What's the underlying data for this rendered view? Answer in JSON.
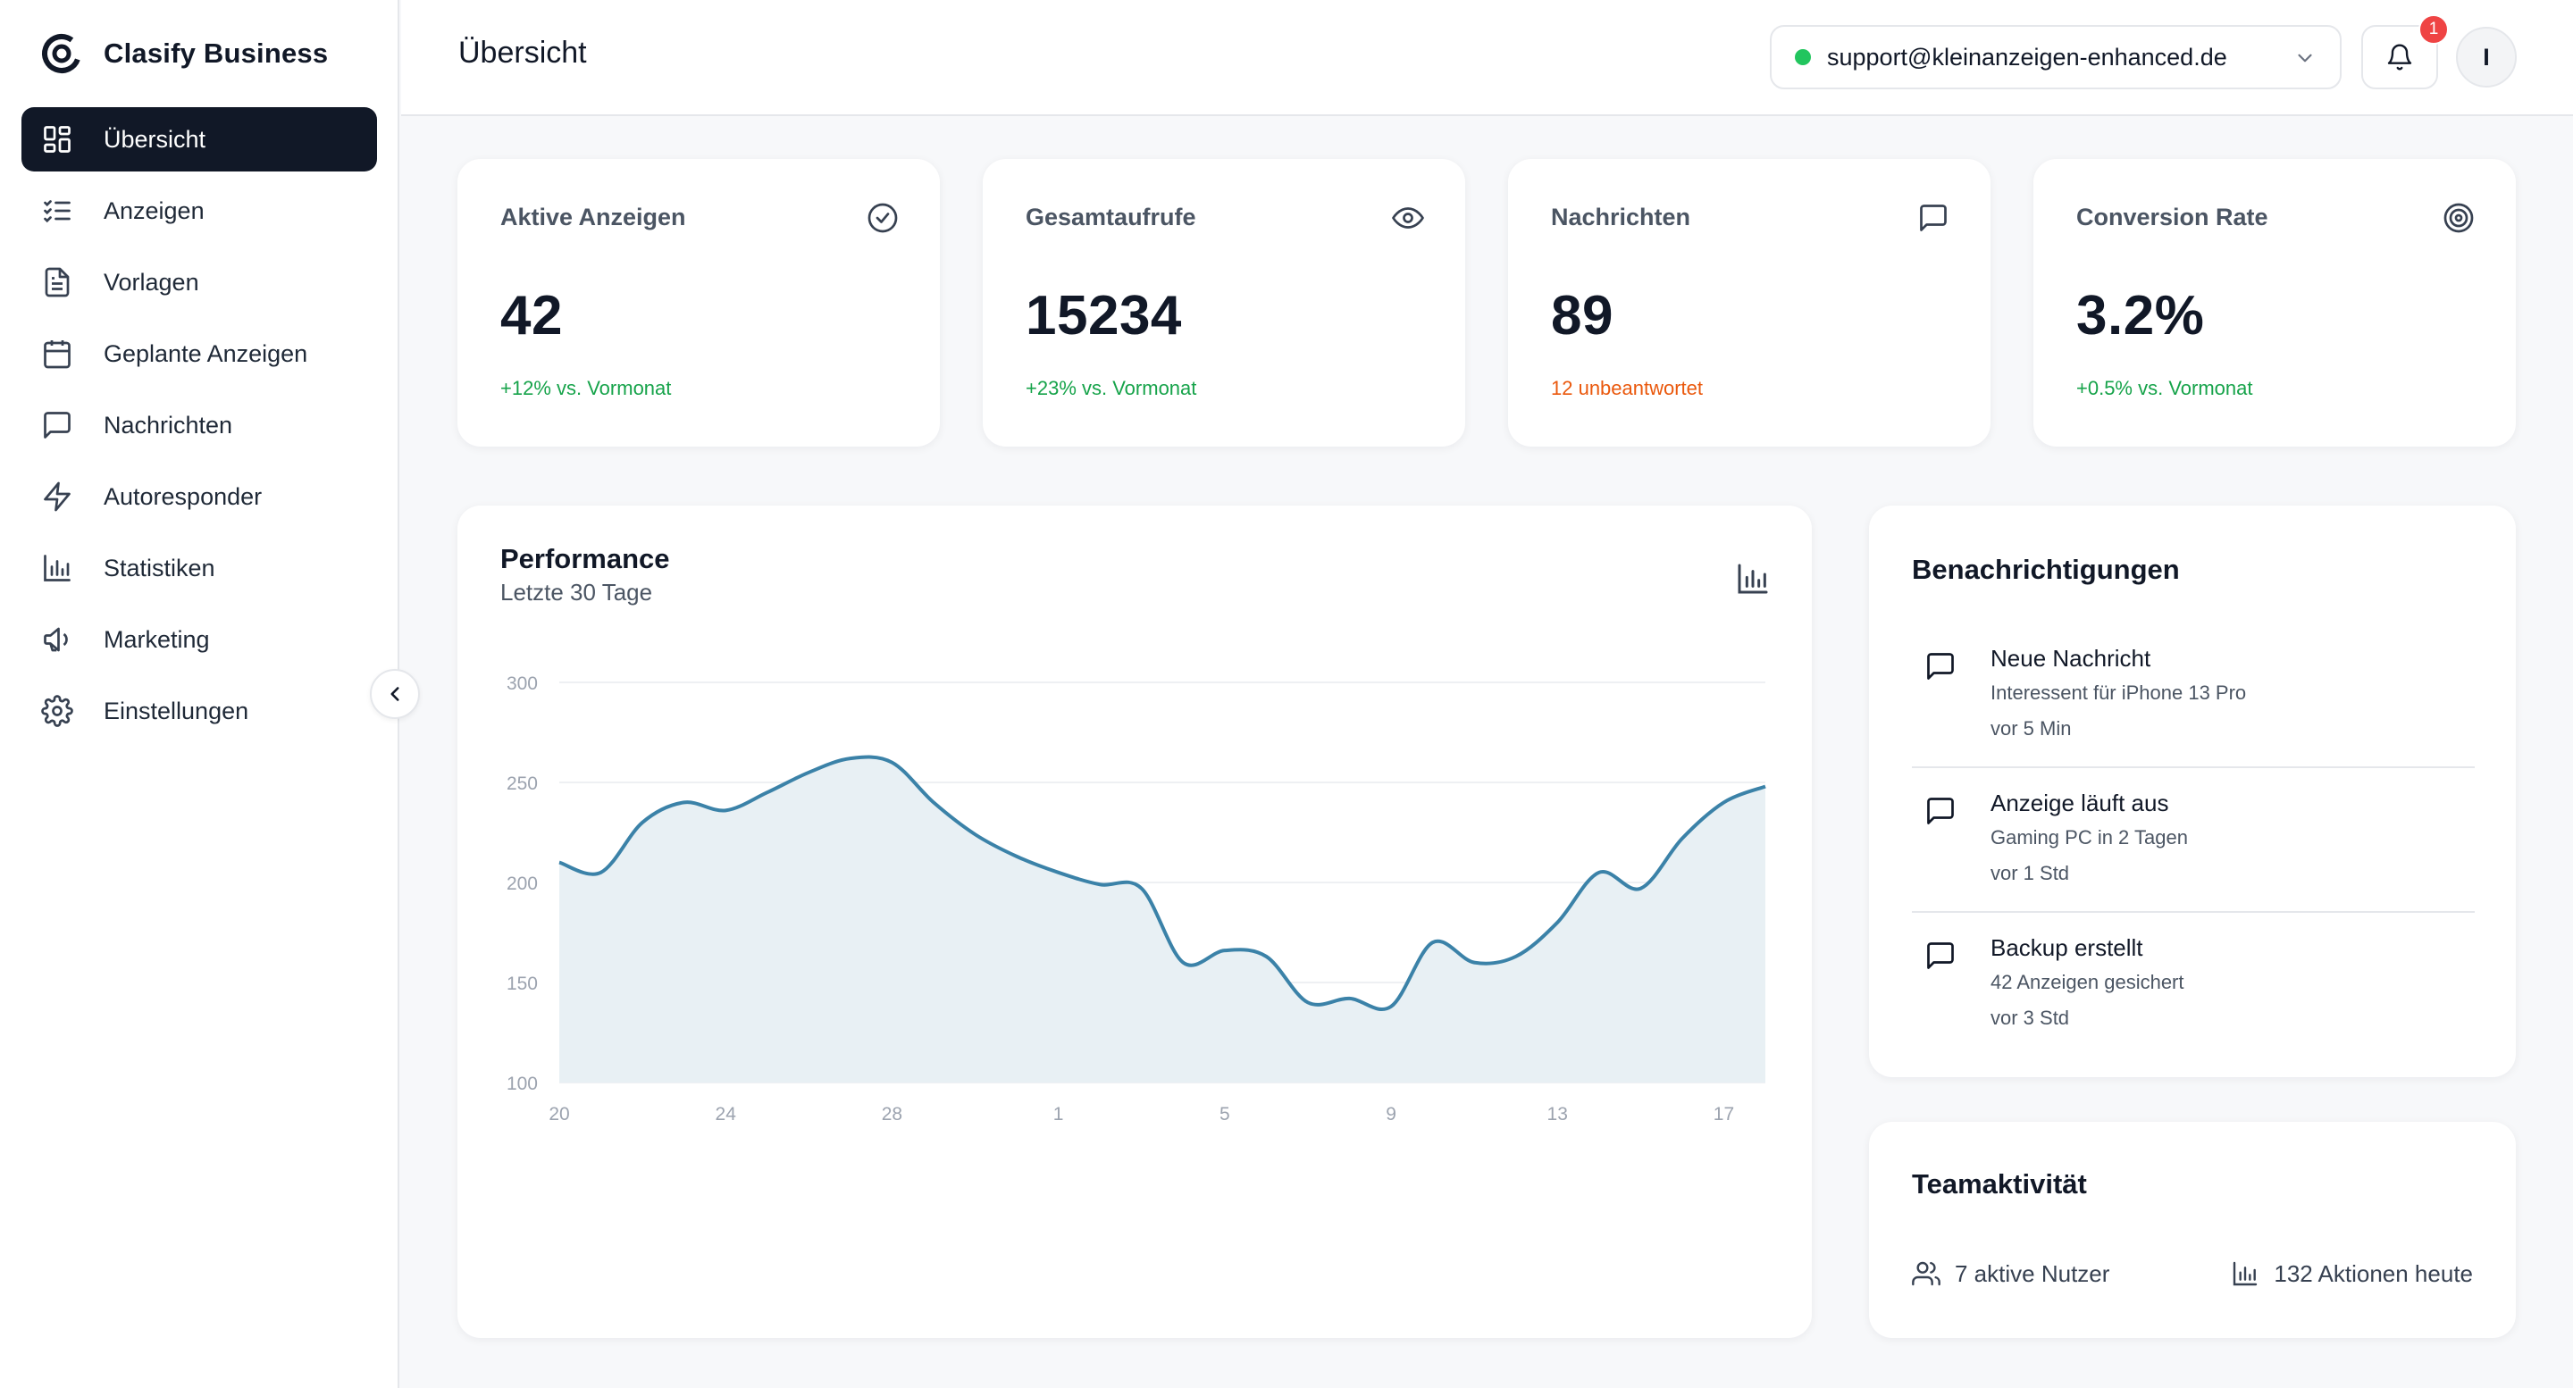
{
  "brand": {
    "name": "Clasify Business"
  },
  "sidebar": {
    "items": [
      {
        "label": "Übersicht",
        "icon": "dashboard-icon"
      },
      {
        "label": "Anzeigen",
        "icon": "list-check-icon"
      },
      {
        "label": "Vorlagen",
        "icon": "file-text-icon"
      },
      {
        "label": "Geplante Anzeigen",
        "icon": "calendar-icon"
      },
      {
        "label": "Nachrichten",
        "icon": "message-square-icon"
      },
      {
        "label": "Autoresponder",
        "icon": "zap-icon"
      },
      {
        "label": "Statistiken",
        "icon": "bar-chart-icon"
      },
      {
        "label": "Marketing",
        "icon": "megaphone-icon"
      },
      {
        "label": "Einstellungen",
        "icon": "gear-icon"
      }
    ],
    "active_index": 0
  },
  "header": {
    "title": "Übersicht",
    "account_email": "support@kleinanzeigen-enhanced.de",
    "notification_count": "1",
    "avatar_initial": "I"
  },
  "stats": [
    {
      "title": "Aktive Anzeigen",
      "value": "42",
      "sub": "+12% vs. Vormonat",
      "sub_color": "#16a34a",
      "icon": "check-circle-icon"
    },
    {
      "title": "Gesamtaufrufe",
      "value": "15234",
      "sub": "+23% vs. Vormonat",
      "sub_color": "#16a34a",
      "icon": "eye-icon"
    },
    {
      "title": "Nachrichten",
      "value": "89",
      "sub": "12 unbeantwortet",
      "sub_color": "#ea580c",
      "icon": "message-square-icon"
    },
    {
      "title": "Conversion Rate",
      "value": "3.2%",
      "sub": "+0.5% vs. Vormonat",
      "sub_color": "#16a34a",
      "icon": "target-icon"
    }
  ],
  "performance": {
    "title": "Performance",
    "subtitle": "Letzte 30 Tage"
  },
  "chart_data": {
    "type": "area",
    "x": [
      "20",
      "21",
      "22",
      "23",
      "24",
      "25",
      "26",
      "27",
      "28",
      "29",
      "30",
      "31",
      "1",
      "2",
      "3",
      "4",
      "5",
      "6",
      "7",
      "8",
      "9",
      "10",
      "11",
      "12",
      "13",
      "14",
      "15",
      "16",
      "17",
      "18"
    ],
    "xticks": [
      "20",
      "24",
      "28",
      "1",
      "5",
      "9",
      "13",
      "17"
    ],
    "values": [
      210,
      205,
      230,
      240,
      236,
      245,
      255,
      262,
      260,
      240,
      224,
      213,
      205,
      199,
      197,
      160,
      166,
      163,
      140,
      142,
      138,
      170,
      160,
      163,
      180,
      205,
      197,
      222,
      240,
      248
    ],
    "ylim": [
      100,
      300
    ],
    "yticks": [
      100,
      150,
      200,
      250,
      300
    ],
    "line_color": "#3b82a8",
    "fill_color": "#e8f0f4",
    "grid": true,
    "xlabel": "",
    "ylabel": ""
  },
  "notifications": {
    "title": "Benachrichtigungen",
    "items": [
      {
        "title": "Neue Nachricht",
        "desc": "Interessent für iPhone 13 Pro",
        "time": "vor 5 Min"
      },
      {
        "title": "Anzeige läuft aus",
        "desc": "Gaming PC in 2 Tagen",
        "time": "vor 1 Std"
      },
      {
        "title": "Backup erstellt",
        "desc": "42 Anzeigen gesichert",
        "time": "vor 3 Std"
      }
    ]
  },
  "team": {
    "title": "Teamaktivität",
    "users": "7 aktive Nutzer",
    "actions": "132 Aktionen heute"
  }
}
